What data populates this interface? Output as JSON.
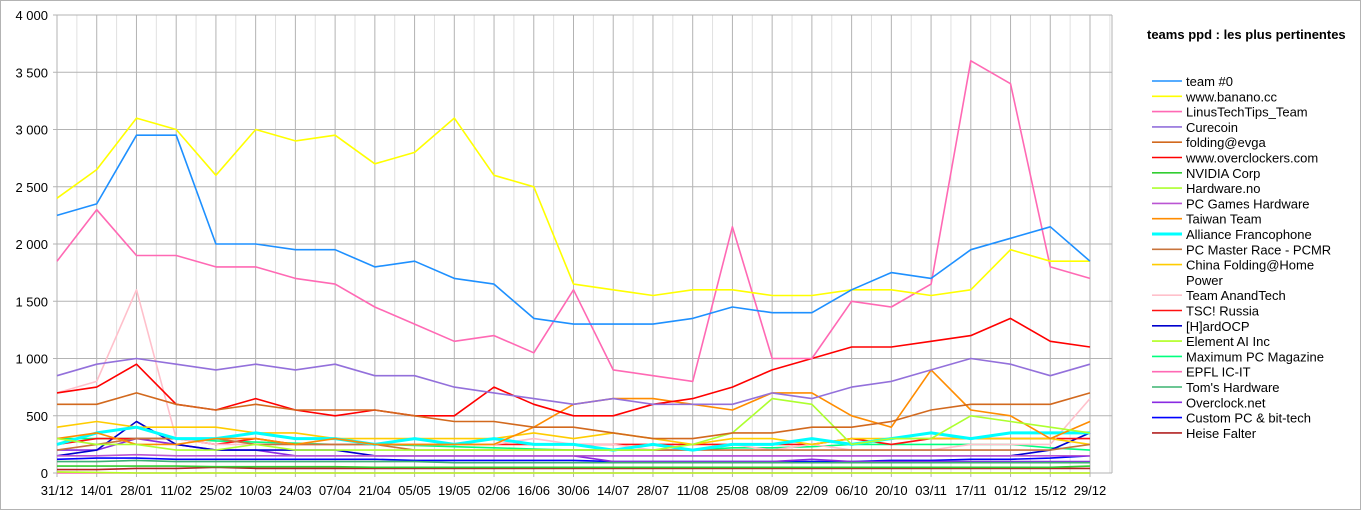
{
  "chart_data": {
    "type": "line",
    "title": "teams ppd : les plus pertinentes",
    "xlabel": "",
    "ylabel": "",
    "ylim": [
      0,
      4000
    ],
    "y_ticks": [
      0,
      500,
      1000,
      1500,
      2000,
      2500,
      3000,
      3500,
      4000
    ],
    "y_tick_labels": [
      "0",
      "500",
      "1 000",
      "1 500",
      "2 000",
      "2 500",
      "3 000",
      "3 500",
      "4 000"
    ],
    "x": [
      "31/12",
      "14/01",
      "28/01",
      "11/02",
      "25/02",
      "10/03",
      "24/03",
      "07/04",
      "21/04",
      "05/05",
      "19/05",
      "02/06",
      "16/06",
      "30/06",
      "14/07",
      "28/07",
      "11/08",
      "25/08",
      "08/09",
      "22/09",
      "06/10",
      "20/10",
      "03/11",
      "17/11",
      "01/12",
      "15/12",
      "29/12"
    ],
    "grid": true,
    "legend_position": "right",
    "series": [
      {
        "name": "team #0",
        "color": "#1e90ff",
        "values": [
          2250,
          2350,
          2950,
          2950,
          2000,
          2000,
          1950,
          1950,
          1800,
          1850,
          1700,
          1650,
          1350,
          1300,
          1300,
          1300,
          1350,
          1450,
          1400,
          1400,
          1600,
          1750,
          1700,
          1950,
          2050,
          2150,
          1850
        ]
      },
      {
        "name": "www.banano.cc",
        "color": "#ffff00",
        "values": [
          2400,
          2650,
          3100,
          3000,
          2600,
          3000,
          2900,
          2950,
          2700,
          2800,
          3100,
          2600,
          2500,
          1650,
          1600,
          1550,
          1600,
          1600,
          1550,
          1550,
          1600,
          1600,
          1550,
          1600,
          1950,
          1850,
          1850
        ]
      },
      {
        "name": "LinusTechTips_Team",
        "color": "#ff69b4",
        "values": [
          1850,
          2300,
          1900,
          1900,
          1800,
          1800,
          1700,
          1650,
          1450,
          1300,
          1150,
          1200,
          1050,
          1600,
          900,
          850,
          800,
          2150,
          1000,
          1000,
          1500,
          1450,
          1650,
          3600,
          3400,
          1800,
          1700
        ]
      },
      {
        "name": "Curecoin",
        "color": "#9370db",
        "values": [
          850,
          950,
          1000,
          950,
          900,
          950,
          900,
          950,
          850,
          850,
          750,
          700,
          650,
          600,
          650,
          600,
          600,
          600,
          700,
          650,
          750,
          800,
          900,
          1000,
          950,
          850,
          950
        ]
      },
      {
        "name": "folding@evga",
        "color": "#d2691e",
        "values": [
          600,
          600,
          700,
          600,
          550,
          600,
          550,
          550,
          550,
          500,
          450,
          450,
          400,
          400,
          350,
          300,
          300,
          350,
          350,
          400,
          400,
          450,
          550,
          600,
          600,
          600,
          700
        ]
      },
      {
        "name": "www.overclockers.com",
        "color": "#ff0000",
        "values": [
          700,
          750,
          950,
          600,
          550,
          650,
          550,
          500,
          550,
          500,
          500,
          750,
          600,
          500,
          500,
          600,
          650,
          750,
          900,
          1000,
          1100,
          1100,
          1150,
          1200,
          1350,
          1150,
          1100
        ]
      },
      {
        "name": "NVIDIA Corp",
        "color": "#32cd32",
        "values": [
          60,
          60,
          60,
          60,
          55,
          55,
          55,
          55,
          50,
          50,
          50,
          50,
          50,
          50,
          50,
          50,
          50,
          50,
          50,
          50,
          50,
          50,
          50,
          50,
          50,
          50,
          60
        ]
      },
      {
        "name": "Hardware.no",
        "color": "#adff2f",
        "values": [
          300,
          250,
          250,
          200,
          200,
          250,
          200,
          200,
          200,
          200,
          200,
          200,
          200,
          200,
          200,
          200,
          250,
          350,
          650,
          600,
          250,
          300,
          300,
          500,
          450,
          400,
          350
        ]
      },
      {
        "name": "PC Games Hardware",
        "color": "#ba55d3",
        "values": [
          150,
          150,
          160,
          150,
          150,
          150,
          150,
          150,
          150,
          150,
          150,
          150,
          150,
          150,
          150,
          150,
          150,
          150,
          150,
          150,
          150,
          150,
          150,
          150,
          150,
          150,
          150
        ]
      },
      {
        "name": "Taiwan Team",
        "color": "#ff8c00",
        "values": [
          300,
          350,
          250,
          250,
          300,
          300,
          250,
          300,
          250,
          250,
          250,
          250,
          400,
          600,
          650,
          650,
          600,
          550,
          700,
          700,
          500,
          400,
          900,
          550,
          500,
          300,
          450
        ]
      },
      {
        "name": "Alliance Francophone",
        "color": "#00ffff",
        "values": [
          250,
          350,
          400,
          300,
          300,
          350,
          300,
          300,
          250,
          300,
          250,
          300,
          250,
          250,
          200,
          250,
          200,
          250,
          250,
          300,
          250,
          300,
          350,
          300,
          350,
          350,
          350
        ]
      },
      {
        "name": "PC Master Race - PCMR",
        "color": "#c8743c",
        "values": [
          200,
          250,
          300,
          300,
          300,
          250,
          250,
          250,
          250,
          200,
          200,
          200,
          200,
          200,
          200,
          200,
          200,
          200,
          200,
          200,
          200,
          200,
          200,
          200,
          200,
          200,
          250
        ]
      },
      {
        "name": "China Folding@Home Power",
        "color": "#ffcc00",
        "values": [
          400,
          450,
          400,
          400,
          400,
          350,
          350,
          300,
          300,
          300,
          300,
          300,
          350,
          300,
          350,
          300,
          250,
          300,
          300,
          250,
          300,
          300,
          300,
          300,
          300,
          300,
          250
        ]
      },
      {
        "name": "Team AnandTech",
        "color": "#ffc0cb",
        "values": [
          700,
          800,
          1600,
          300,
          250,
          250,
          250,
          250,
          250,
          250,
          250,
          250,
          300,
          250,
          250,
          200,
          200,
          250,
          200,
          250,
          200,
          200,
          200,
          250,
          250,
          250,
          650
        ]
      },
      {
        "name": "TSC! Russia",
        "color": "#ff1010",
        "values": [
          250,
          300,
          300,
          300,
          250,
          300,
          250,
          250,
          250,
          250,
          250,
          250,
          250,
          250,
          250,
          250,
          250,
          250,
          250,
          250,
          300,
          250,
          300,
          300,
          300,
          300,
          300
        ]
      },
      {
        "name": "[H]ardOCP",
        "color": "#0000cd",
        "values": [
          150,
          200,
          450,
          250,
          200,
          200,
          200,
          200,
          150,
          150,
          150,
          150,
          150,
          150,
          150,
          150,
          150,
          150,
          150,
          150,
          150,
          150,
          150,
          150,
          150,
          200,
          350
        ]
      },
      {
        "name": "Element AI Inc",
        "color": "#b0ff20",
        "values": [
          10,
          5,
          0,
          0,
          0,
          0,
          0,
          0,
          0,
          0,
          0,
          0,
          0,
          0,
          0,
          0,
          0,
          0,
          0,
          0,
          0,
          0,
          0,
          0,
          0,
          0,
          0
        ]
      },
      {
        "name": "Maximum PC Magazine",
        "color": "#00ff7f",
        "values": [
          300,
          300,
          300,
          300,
          280,
          270,
          260,
          250,
          250,
          240,
          230,
          220,
          210,
          200,
          200,
          200,
          200,
          220,
          220,
          230,
          250,
          250,
          250,
          250,
          250,
          220,
          200
        ]
      },
      {
        "name": "EPFL IC-IT",
        "color": "#ff69b4",
        "values": [
          0,
          0,
          0,
          0,
          0,
          0,
          0,
          0,
          0,
          0,
          0,
          0,
          0,
          0,
          0,
          0,
          0,
          0,
          0,
          0,
          0,
          0,
          0,
          0,
          0,
          0,
          0
        ]
      },
      {
        "name": "Tom's Hardware",
        "color": "#3cb371",
        "values": [
          100,
          100,
          110,
          100,
          100,
          100,
          100,
          100,
          100,
          100,
          90,
          90,
          90,
          90,
          90,
          90,
          90,
          90,
          90,
          90,
          90,
          90,
          90,
          90,
          90,
          90,
          90
        ]
      },
      {
        "name": "Overclock.net",
        "color": "#8a2be2",
        "values": [
          200,
          200,
          300,
          250,
          200,
          200,
          150,
          150,
          150,
          150,
          150,
          150,
          150,
          150,
          100,
          100,
          100,
          100,
          100,
          120,
          100,
          100,
          100,
          100,
          100,
          100,
          100
        ]
      },
      {
        "name": "Custom PC & bit-tech",
        "color": "#0000ff",
        "values": [
          120,
          130,
          130,
          120,
          120,
          120,
          120,
          120,
          120,
          110,
          110,
          110,
          110,
          110,
          100,
          100,
          100,
          100,
          100,
          100,
          100,
          110,
          110,
          120,
          120,
          130,
          150
        ]
      },
      {
        "name": "Heise Falter",
        "color": "#b22222",
        "values": [
          30,
          30,
          40,
          40,
          50,
          40,
          40,
          40,
          40,
          40,
          40,
          40,
          40,
          40,
          40,
          40,
          40,
          40,
          40,
          40,
          40,
          40,
          40,
          40,
          40,
          40,
          40
        ]
      }
    ]
  }
}
